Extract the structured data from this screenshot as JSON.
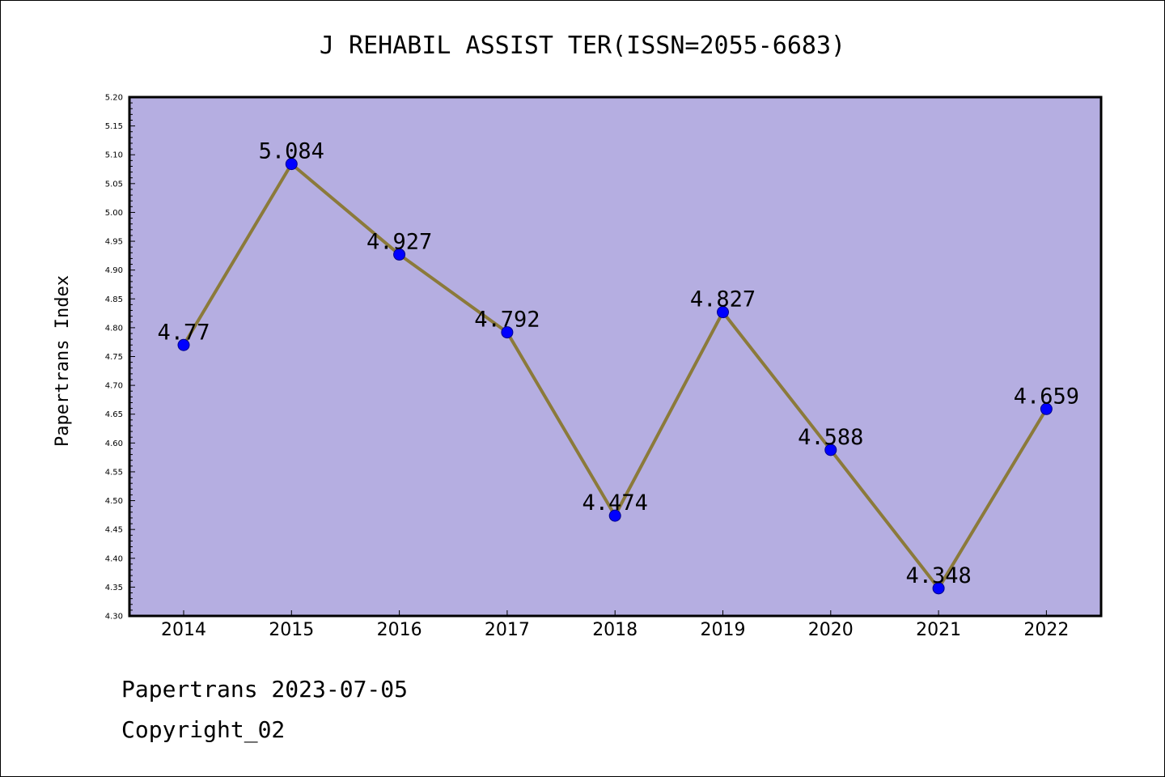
{
  "chart_data": {
    "type": "line",
    "title": "J REHABIL ASSIST TER(ISSN=2055-6683)",
    "xlabel": "",
    "ylabel": "Papertrans Index",
    "categories": [
      "2014",
      "2015",
      "2016",
      "2017",
      "2018",
      "2019",
      "2020",
      "2021",
      "2022"
    ],
    "series": [
      {
        "values": [
          4.77,
          5.084,
          4.927,
          4.792,
          4.474,
          4.827,
          4.588,
          4.348,
          4.659
        ]
      }
    ],
    "data_labels": [
      "4.77",
      "5.084",
      "4.927",
      "4.792",
      "4.474",
      "4.827",
      "4.588",
      "4.348",
      "4.659"
    ],
    "ylim": [
      4.3,
      5.2
    ],
    "ytick_labels": [
      "4.30",
      "4.35",
      "4.40",
      "4.45",
      "4.50",
      "4.55",
      "4.60",
      "4.65",
      "4.70",
      "4.75",
      "4.80",
      "4.85",
      "4.90",
      "4.95",
      "5.00",
      "5.05",
      "5.10",
      "5.15",
      "5.20"
    ],
    "grid": false,
    "colors": {
      "plot_background": "#b5aee1",
      "line": "#8b7a3a",
      "marker": "#0000ff"
    }
  },
  "footer": {
    "line1": "Papertrans 2023-07-05",
    "line2": "Copyright_02"
  }
}
